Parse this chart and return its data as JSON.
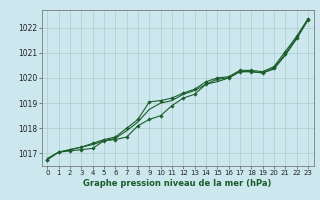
{
  "title": "Graphe pression niveau de la mer (hPa)",
  "bg_color": "#cce8ee",
  "grid_color": "#aacccc",
  "line_color": "#1a5c2a",
  "marker_color": "#1a5c2a",
  "xlim": [
    -0.5,
    23.5
  ],
  "ylim": [
    1016.5,
    1022.7
  ],
  "yticks": [
    1017,
    1018,
    1019,
    1020,
    1021,
    1022
  ],
  "xticks": [
    0,
    1,
    2,
    3,
    4,
    5,
    6,
    7,
    8,
    9,
    10,
    11,
    12,
    13,
    14,
    15,
    16,
    17,
    18,
    19,
    20,
    21,
    22,
    23
  ],
  "series1_x": [
    0,
    1,
    2,
    3,
    4,
    5,
    6,
    7,
    8,
    9,
    10,
    11,
    12,
    13,
    14,
    15,
    16,
    17,
    18,
    19,
    20,
    21,
    22,
    23
  ],
  "series1_y": [
    1016.8,
    1017.05,
    1017.15,
    1017.25,
    1017.35,
    1017.5,
    1017.6,
    1017.9,
    1018.25,
    1018.75,
    1019.0,
    1019.1,
    1019.35,
    1019.5,
    1019.75,
    1019.85,
    1020.0,
    1020.25,
    1020.25,
    1020.2,
    1020.35,
    1020.9,
    1021.55,
    1022.3
  ],
  "series2_x": [
    0,
    1,
    2,
    3,
    4,
    5,
    6,
    7,
    8,
    9,
    10,
    11,
    12,
    13,
    14,
    15,
    16,
    17,
    18,
    19,
    20,
    21,
    22,
    23
  ],
  "series2_y": [
    1016.75,
    1017.05,
    1017.15,
    1017.25,
    1017.4,
    1017.55,
    1017.65,
    1018.0,
    1018.35,
    1019.05,
    1019.1,
    1019.2,
    1019.4,
    1019.55,
    1019.85,
    1020.0,
    1020.05,
    1020.3,
    1020.3,
    1020.25,
    1020.45,
    1021.05,
    1021.65,
    1022.35
  ],
  "series3_x": [
    0,
    1,
    2,
    3,
    4,
    5,
    6,
    7,
    8,
    9,
    10,
    11,
    12,
    13,
    14,
    15,
    16,
    17,
    18,
    19,
    20,
    21,
    22,
    23
  ],
  "series3_y": [
    1016.75,
    1017.05,
    1017.1,
    1017.15,
    1017.2,
    1017.5,
    1017.55,
    1017.65,
    1018.1,
    1018.35,
    1018.5,
    1018.9,
    1019.2,
    1019.35,
    1019.75,
    1019.95,
    1020.0,
    1020.25,
    1020.25,
    1020.2,
    1020.4,
    1020.95,
    1021.6,
    1022.3
  ],
  "ylabel_fontsize": 5.5,
  "xlabel_fontsize": 5.0,
  "title_fontsize": 6.0,
  "figwidth": 3.2,
  "figheight": 2.0,
  "dpi": 100
}
